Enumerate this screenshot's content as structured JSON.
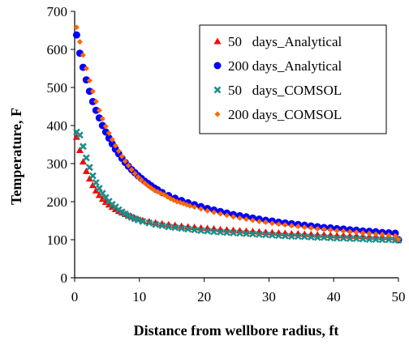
{
  "chart_data": {
    "type": "scatter",
    "xlabel": "Distance from wellbore radius, ft",
    "ylabel": "Temperature, F",
    "xlim": [
      0,
      50
    ],
    "ylim": [
      0,
      700
    ],
    "xticks": [
      0,
      10,
      20,
      30,
      40,
      50
    ],
    "yticks": [
      0,
      100,
      200,
      300,
      400,
      500,
      600,
      700
    ],
    "grid": false,
    "legend_position": "top-right",
    "series": [
      {
        "name": "50   days_Analytical",
        "marker": "triangle",
        "color": "#ff0000",
        "x": [
          0.3,
          0.8,
          1.3,
          1.8,
          2.3,
          2.8,
          3.3,
          3.8,
          4.3,
          4.8,
          5.3,
          5.8,
          6.3,
          6.8,
          7.3,
          7.8,
          8.3,
          8.8,
          9.3,
          9.8,
          10.5,
          11.5,
          12.5,
          13.5,
          14.5,
          15.5,
          16.5,
          17.5,
          18.5,
          19.5,
          20.5,
          21.5,
          22.5,
          23.5,
          24.5,
          25.5,
          26.5,
          27.5,
          28.5,
          29.5,
          30.5,
          31.5,
          32.5,
          33.5,
          34.5,
          35.5,
          36.5,
          37.5,
          38.5,
          39.5,
          40.5,
          41.5,
          42.5,
          43.5,
          44.5,
          45.5,
          46.5,
          47.5,
          48.5,
          49.5,
          50
        ],
        "y": [
          370,
          335,
          305,
          280,
          260,
          243,
          229,
          217,
          207,
          199,
          192,
          186,
          180,
          175,
          171,
          167,
          163,
          160,
          157,
          154,
          151,
          148,
          145,
          142,
          140,
          138,
          136,
          134,
          133,
          131,
          130,
          129,
          127,
          126,
          125,
          124,
          123,
          122,
          121,
          120,
          119,
          118,
          117,
          116,
          116,
          115,
          114,
          113,
          113,
          112,
          111,
          111,
          110,
          110,
          109,
          108,
          108,
          107,
          107,
          106,
          100
        ]
      },
      {
        "name": "200 days_Analytical",
        "marker": "circle",
        "color": "#0000ff",
        "x": [
          0.3,
          0.8,
          1.3,
          1.8,
          2.3,
          2.8,
          3.3,
          3.8,
          4.3,
          4.8,
          5.3,
          5.8,
          6.3,
          6.8,
          7.3,
          7.8,
          8.3,
          8.8,
          9.3,
          9.8,
          10.3,
          10.8,
          11.3,
          11.8,
          12.3,
          12.8,
          13.5,
          14.5,
          15.5,
          16.5,
          17.5,
          18.5,
          19.5,
          20.5,
          21.5,
          22.5,
          23.5,
          24.5,
          25.5,
          26.5,
          27.5,
          28.5,
          29.5,
          30.5,
          31.5,
          32.5,
          33.5,
          34.5,
          35.5,
          36.5,
          37.5,
          38.5,
          39.5,
          40.5,
          41.5,
          42.5,
          43.5,
          44.5,
          45.5,
          46.5,
          47.5,
          48.5,
          49.5,
          50
        ],
        "y": [
          638,
          590,
          553,
          520,
          490,
          463,
          440,
          420,
          400,
          383,
          367,
          352,
          338,
          326,
          314,
          303,
          293,
          284,
          276,
          268,
          261,
          254,
          248,
          242,
          236,
          231,
          224,
          216,
          209,
          203,
          197,
          192,
          187,
          182,
          178,
          174,
          170,
          166,
          163,
          160,
          157,
          154,
          151,
          149,
          146,
          144,
          142,
          140,
          138,
          136,
          134,
          132,
          131,
          129,
          128,
          126,
          125,
          123,
          122,
          121,
          119,
          118,
          117,
          100
        ]
      },
      {
        "name": "50   days_COMSOL",
        "marker": "x",
        "color": "#1a8f8a",
        "x": [
          0.3,
          0.8,
          1.3,
          1.8,
          2.3,
          2.8,
          3.3,
          3.8,
          4.3,
          4.8,
          5.3,
          5.8,
          6.3,
          6.8,
          7.3,
          7.8,
          8.3,
          8.8,
          9.3,
          9.8,
          10.5,
          11.5,
          12.5,
          13.5,
          14.5,
          15.5,
          16.5,
          17.5,
          18.5,
          19.5,
          20.5,
          21.5,
          22.5,
          23.5,
          24.5,
          25.5,
          26.5,
          27.5,
          28.5,
          29.5,
          30.5,
          31.5,
          32.5,
          33.5,
          34.5,
          35.5,
          36.5,
          37.5,
          38.5,
          39.5,
          40.5,
          41.5,
          42.5,
          43.5,
          44.5,
          45.5,
          46.5,
          47.5,
          48.5,
          49.5,
          50
        ],
        "y": [
          383,
          375,
          345,
          315,
          290,
          268,
          250,
          235,
          222,
          211,
          201,
          193,
          186,
          179,
          173,
          168,
          163,
          159,
          155,
          152,
          148,
          144,
          140,
          137,
          134,
          132,
          130,
          128,
          126,
          124,
          123,
          121,
          120,
          119,
          118,
          117,
          116,
          115,
          114,
          113,
          112,
          111,
          110,
          109,
          109,
          108,
          107,
          106,
          106,
          105,
          104,
          104,
          103,
          103,
          102,
          101,
          101,
          100,
          100,
          99,
          99
        ]
      },
      {
        "name": "200 days_COMSOL",
        "marker": "diamond",
        "color": "#ff6600",
        "x": [
          0.3,
          0.8,
          1.3,
          1.8,
          2.3,
          2.8,
          3.3,
          3.8,
          4.3,
          4.8,
          5.3,
          5.8,
          6.3,
          6.8,
          7.3,
          7.8,
          8.3,
          8.8,
          9.3,
          9.8,
          10.3,
          10.8,
          11.3,
          11.8,
          12.3,
          12.8,
          13.3,
          13.8,
          14.3,
          14.8,
          15.3,
          15.8,
          16.3,
          16.8,
          17.3,
          17.8,
          18.5,
          19.5,
          20.5,
          21.5,
          22.5,
          23.5,
          24.5,
          25.5,
          26.5,
          27.5,
          28.5,
          29.5,
          30.5,
          31.5,
          32.5,
          33.5,
          34.5,
          35.5,
          36.5,
          37.5,
          38.5,
          39.5,
          40.5,
          41.5,
          42.5,
          43.5,
          44.5,
          45.5,
          46.5,
          47.5,
          48.5,
          49.5,
          50
        ],
        "y": [
          658,
          620,
          585,
          550,
          518,
          490,
          463,
          440,
          418,
          398,
          380,
          363,
          347,
          333,
          319,
          306,
          295,
          284,
          274,
          265,
          257,
          249,
          242,
          236,
          230,
          226,
          222,
          218,
          213,
          208,
          204,
          200,
          198,
          195,
          192,
          189,
          186,
          181,
          176,
          172,
          168,
          164,
          160,
          157,
          154,
          151,
          148,
          146,
          143,
          141,
          139,
          137,
          135,
          133,
          131,
          129,
          128,
          126,
          124,
          123,
          121,
          120,
          118,
          117,
          115,
          114,
          112,
          110,
          101
        ]
      }
    ]
  }
}
